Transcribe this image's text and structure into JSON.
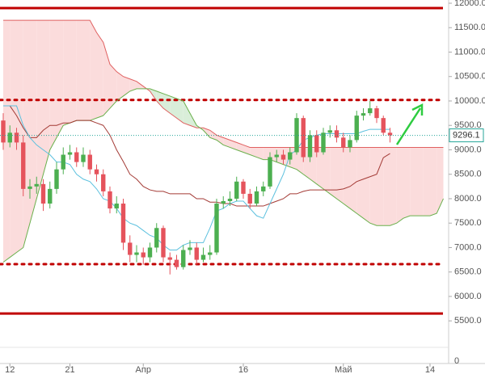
{
  "chart_data": {
    "type": "candlestick",
    "categories": [
      null,
      "12",
      null,
      null,
      null,
      null,
      null,
      null,
      null,
      null,
      "21",
      null,
      null,
      null,
      null,
      null,
      null,
      null,
      null,
      null,
      null,
      "Апр",
      null,
      null,
      null,
      null,
      null,
      null,
      null,
      null,
      null,
      null,
      null,
      null,
      null,
      null,
      "16",
      null,
      null,
      null,
      null,
      null,
      null,
      null,
      null,
      null,
      null,
      null,
      null,
      null,
      null,
      "Май",
      null,
      null,
      null,
      null,
      null,
      null,
      null,
      null,
      null,
      null,
      null,
      null,
      "14",
      null,
      null
    ],
    "candles": {
      "open": [
        9600,
        9150,
        9350,
        9150,
        8200,
        8250,
        8300,
        7900,
        8200,
        8600,
        8900,
        8950,
        8750,
        8900,
        8600,
        8500,
        8150,
        7800,
        7900,
        7100,
        6850,
        6900,
        6800,
        7000,
        7400,
        6800,
        6750,
        6600,
        6950,
        7000,
        6750,
        6850,
        6900,
        7900,
        7950,
        8000,
        8350,
        8100,
        7900,
        8150,
        8250,
        8850,
        8900,
        8800,
        8950,
        9650,
        8850,
        9300,
        8950,
        9350,
        9400,
        9250,
        9050,
        9200,
        9700,
        9750,
        9850,
        9650,
        9350,
        null,
        null,
        null,
        null,
        null,
        null,
        null,
        null
      ],
      "high": [
        9750,
        9500,
        9450,
        9300,
        8400,
        8450,
        8400,
        8350,
        8750,
        9050,
        9100,
        9050,
        9050,
        9000,
        8700,
        8600,
        8250,
        8050,
        8000,
        7250,
        7050,
        7000,
        7100,
        7500,
        7450,
        6900,
        6850,
        7050,
        7150,
        7100,
        7000,
        7050,
        8000,
        8050,
        8150,
        8450,
        8400,
        8200,
        8250,
        8350,
        8950,
        9000,
        9000,
        9050,
        9750,
        9700,
        9400,
        9400,
        9450,
        9500,
        9500,
        9350,
        9300,
        9800,
        9850,
        10000,
        9900,
        9700,
        9450,
        null,
        null,
        null,
        null,
        null,
        null,
        null,
        null
      ],
      "low": [
        9000,
        9050,
        9000,
        8050,
        8000,
        8100,
        7750,
        7800,
        8100,
        8500,
        8800,
        8650,
        8650,
        8500,
        8350,
        8050,
        7700,
        7700,
        6950,
        6700,
        6700,
        6650,
        6700,
        6900,
        6700,
        6450,
        6550,
        6550,
        6850,
        6650,
        6700,
        6750,
        6850,
        7800,
        7850,
        7950,
        8000,
        7800,
        7850,
        8050,
        8200,
        8750,
        8700,
        8700,
        8900,
        8750,
        8750,
        8850,
        8900,
        9250,
        9150,
        8950,
        8950,
        9150,
        9600,
        9700,
        9550,
        9300,
        9150,
        null,
        null,
        null,
        null,
        null,
        null,
        null,
        null
      ],
      "close": [
        9150,
        9350,
        9150,
        8200,
        8250,
        8300,
        7900,
        8200,
        8600,
        8900,
        8950,
        8750,
        8900,
        8600,
        8500,
        8150,
        7800,
        7900,
        7100,
        6850,
        6900,
        6800,
        7000,
        7400,
        6800,
        6750,
        6600,
        6950,
        7000,
        6750,
        6850,
        6900,
        7900,
        7950,
        8000,
        8350,
        8100,
        7900,
        8150,
        8250,
        8850,
        8900,
        8800,
        8950,
        9650,
        8850,
        9300,
        8950,
        9350,
        9400,
        9250,
        9050,
        9200,
        9700,
        9750,
        9850,
        9650,
        9350,
        9296.1,
        null,
        null,
        null,
        null,
        null,
        null,
        null,
        null
      ]
    },
    "up_color": "#4caf50",
    "down_color": "#e5535c",
    "tenkan": {
      "color": "#5bc0de",
      "values": [
        9900,
        9900,
        9900,
        9500,
        9250,
        9100,
        9000,
        8900,
        8750,
        8750,
        8700,
        8500,
        8400,
        8350,
        8200,
        8000,
        7950,
        7800,
        7600,
        7500,
        7450,
        7350,
        7250,
        7200,
        7050,
        6950,
        6950,
        7050,
        7100,
        7100,
        7100,
        7400,
        7750,
        7800,
        7900,
        7950,
        7950,
        7800,
        7650,
        7600,
        7900,
        8200,
        8500,
        8900,
        9000,
        9200,
        9250,
        9300,
        9330,
        9330,
        9330,
        9330,
        9330,
        9330,
        9380,
        9420,
        9420,
        9420,
        9420,
        null,
        null,
        null,
        null,
        null,
        null,
        null,
        null
      ]
    },
    "kijun": {
      "color": "#a33a35",
      "values": [
        9900,
        9900,
        9700,
        9450,
        9250,
        9250,
        9400,
        9500,
        9500,
        9550,
        9550,
        9600,
        9600,
        9600,
        9550,
        9500,
        9300,
        9000,
        8760,
        8500,
        8400,
        8250,
        8180,
        8150,
        8150,
        8100,
        8100,
        8100,
        8100,
        8000,
        8000,
        7930,
        7930,
        7900,
        7900,
        7850,
        7850,
        7850,
        7850,
        7850,
        7900,
        7950,
        8000,
        8100,
        8100,
        8150,
        8180,
        8180,
        8180,
        8180,
        8180,
        8200,
        8250,
        8350,
        8400,
        8450,
        8500,
        8840,
        8925,
        null,
        null,
        null,
        null,
        null,
        null,
        null,
        null
      ]
    },
    "senkou_a": {
      "color": "#6ab04c",
      "values": [
        6700,
        6800,
        6900,
        7000,
        7500,
        8000,
        8500,
        9000,
        9250,
        9500,
        9550,
        9600,
        9600,
        9600,
        9650,
        9700,
        9850,
        10000,
        10100,
        10200,
        10250,
        10250,
        10250,
        10200,
        10150,
        10100,
        10050,
        10000,
        9750,
        9500,
        9400,
        9250,
        9200,
        9100,
        9050,
        9000,
        8950,
        8900,
        8850,
        8800,
        8800,
        8750,
        8700,
        8650,
        8600,
        8500,
        8400,
        8300,
        8200,
        8100,
        8000,
        7900,
        7800,
        7700,
        7600,
        7500,
        7450,
        7450,
        7450,
        7500,
        7600,
        7650,
        7650,
        7650,
        7650,
        7700,
        8000
      ]
    },
    "senkou_b": {
      "color": "#e06060",
      "values": [
        11650,
        11650,
        11650,
        11650,
        11650,
        11650,
        11650,
        11650,
        11650,
        11650,
        11650,
        11650,
        11650,
        11650,
        11400,
        11200,
        10750,
        10600,
        10500,
        10450,
        10400,
        10300,
        10200,
        10000,
        9850,
        9750,
        9650,
        9550,
        9500,
        9450,
        9450,
        9400,
        9300,
        9250,
        9200,
        9150,
        9100,
        9050,
        9050,
        9050,
        9050,
        9050,
        9050,
        9050,
        9050,
        9050,
        9050,
        9050,
        9050,
        9050,
        9050,
        9050,
        9050,
        9050,
        9050,
        9050,
        9050,
        9050,
        9050,
        9050,
        9050,
        9050,
        9050,
        9050,
        9050,
        9050,
        9050
      ]
    },
    "cloud_up_color": "#d9eed9",
    "cloud_down_color": "#fbdcdc",
    "levels": [
      {
        "value": 11900,
        "style": "solid"
      },
      {
        "value": 10020,
        "style": "dotted"
      },
      {
        "value": 6660,
        "style": "dotted"
      },
      {
        "value": 5650,
        "style": "solid"
      }
    ],
    "level_color": "#c00000",
    "last_price": 9296.1,
    "last_price_color": "#26a69a",
    "ylim": [
      4958,
      12066
    ],
    "yticks": [
      {
        "value": 5500,
        "label": "5500.0"
      },
      {
        "value": 6000,
        "label": "6000.0"
      },
      {
        "value": 6500,
        "label": "6500.0"
      },
      {
        "value": 7000,
        "label": "7000.0"
      },
      {
        "value": 7500,
        "label": "7500.0"
      },
      {
        "value": 8000,
        "label": "8000.0"
      },
      {
        "value": 8500,
        "label": "8500.0"
      },
      {
        "value": 9000,
        "label": "9000.0"
      },
      {
        "value": 9500,
        "label": "9500.0"
      },
      {
        "value": 10000,
        "label": "10000.0"
      },
      {
        "value": 10500,
        "label": "10500.0"
      },
      {
        "value": 11000,
        "label": "11000.0"
      },
      {
        "value": 11500,
        "label": "11500.0"
      },
      {
        "value": 12000,
        "label": "12000.0"
      }
    ],
    "volume_yticks": [
      0
    ]
  }
}
